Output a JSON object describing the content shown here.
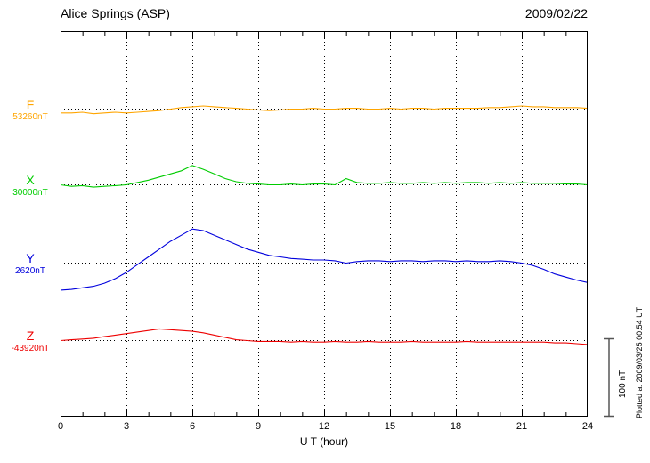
{
  "header": {
    "title": "Alice Springs (ASP)",
    "date": "2009/02/22"
  },
  "watermark": "Plotted at 2009/03/25 00:54 UT",
  "scale_bar": {
    "label": "100 nT",
    "nT": 100
  },
  "chart_data": {
    "type": "line",
    "title": "Alice Springs (ASP)",
    "subtitle": "2009/02/22",
    "xlabel": "U T (hour)",
    "xlim": [
      0,
      24
    ],
    "xticks": [
      0,
      3,
      6,
      9,
      12,
      15,
      18,
      21,
      24
    ],
    "grid": "dotted vertical gridlines every 3 hours; dotted horizontal baseline per channel",
    "scale_nT": 100,
    "x": [
      0,
      0.5,
      1,
      1.5,
      2,
      2.5,
      3,
      3.5,
      4,
      4.5,
      5,
      5.5,
      6,
      6.5,
      7,
      7.5,
      8,
      8.5,
      9,
      9.5,
      10,
      10.5,
      11,
      11.5,
      12,
      12.5,
      13,
      13.5,
      14,
      14.5,
      15,
      15.5,
      16,
      16.5,
      17,
      17.5,
      18,
      18.5,
      19,
      19.5,
      20,
      20.5,
      21,
      21.5,
      22,
      22.5,
      23,
      23.5,
      24
    ],
    "series": [
      {
        "name": "F",
        "baseline_label": "53260nT",
        "baseline_nT": 53260,
        "color": "#FFA500",
        "offsets_nT": [
          -5,
          -5,
          -4,
          -6,
          -5,
          -4,
          -5,
          -4,
          -3,
          -2,
          0,
          2,
          3,
          4,
          3,
          2,
          1,
          0,
          -1,
          -2,
          -1,
          0,
          0,
          1,
          0,
          0,
          1,
          1,
          0,
          0,
          1,
          0,
          1,
          1,
          0,
          1,
          1,
          1,
          1,
          2,
          2,
          3,
          4,
          3,
          3,
          2,
          2,
          2,
          1
        ]
      },
      {
        "name": "X",
        "baseline_label": "30000nT",
        "baseline_nT": 30000,
        "color": "#00CC00",
        "offsets_nT": [
          0,
          -2,
          -1,
          -3,
          -2,
          -1,
          0,
          3,
          6,
          10,
          14,
          18,
          25,
          20,
          14,
          8,
          4,
          2,
          1,
          0,
          0,
          1,
          0,
          1,
          1,
          0,
          8,
          3,
          2,
          2,
          3,
          2,
          2,
          3,
          2,
          3,
          2,
          3,
          3,
          2,
          3,
          2,
          3,
          2,
          2,
          2,
          1,
          1,
          0
        ]
      },
      {
        "name": "Y",
        "baseline_label": "2620nT",
        "baseline_nT": 2620,
        "color": "#0000DD",
        "offsets_nT": [
          -35,
          -34,
          -32,
          -30,
          -26,
          -20,
          -12,
          -2,
          8,
          18,
          28,
          36,
          44,
          42,
          36,
          30,
          24,
          18,
          14,
          10,
          8,
          6,
          5,
          4,
          4,
          3,
          0,
          2,
          3,
          3,
          2,
          3,
          3,
          2,
          3,
          3,
          2,
          3,
          2,
          2,
          3,
          2,
          0,
          -3,
          -8,
          -14,
          -18,
          -22,
          -25
        ]
      },
      {
        "name": "Z",
        "baseline_label": "-43920nT",
        "baseline_nT": -43920,
        "color": "#EE0000",
        "offsets_nT": [
          0,
          1,
          2,
          3,
          5,
          7,
          9,
          11,
          13,
          15,
          14,
          13,
          12,
          10,
          7,
          4,
          1,
          0,
          -1,
          -1,
          -1,
          -2,
          -1,
          -2,
          -2,
          -1,
          -2,
          -2,
          -1,
          -2,
          -2,
          -2,
          -1,
          -2,
          -2,
          -2,
          -2,
          -1,
          -2,
          -2,
          -2,
          -2,
          -2,
          -2,
          -2,
          -3,
          -3,
          -4,
          -5
        ]
      }
    ]
  }
}
